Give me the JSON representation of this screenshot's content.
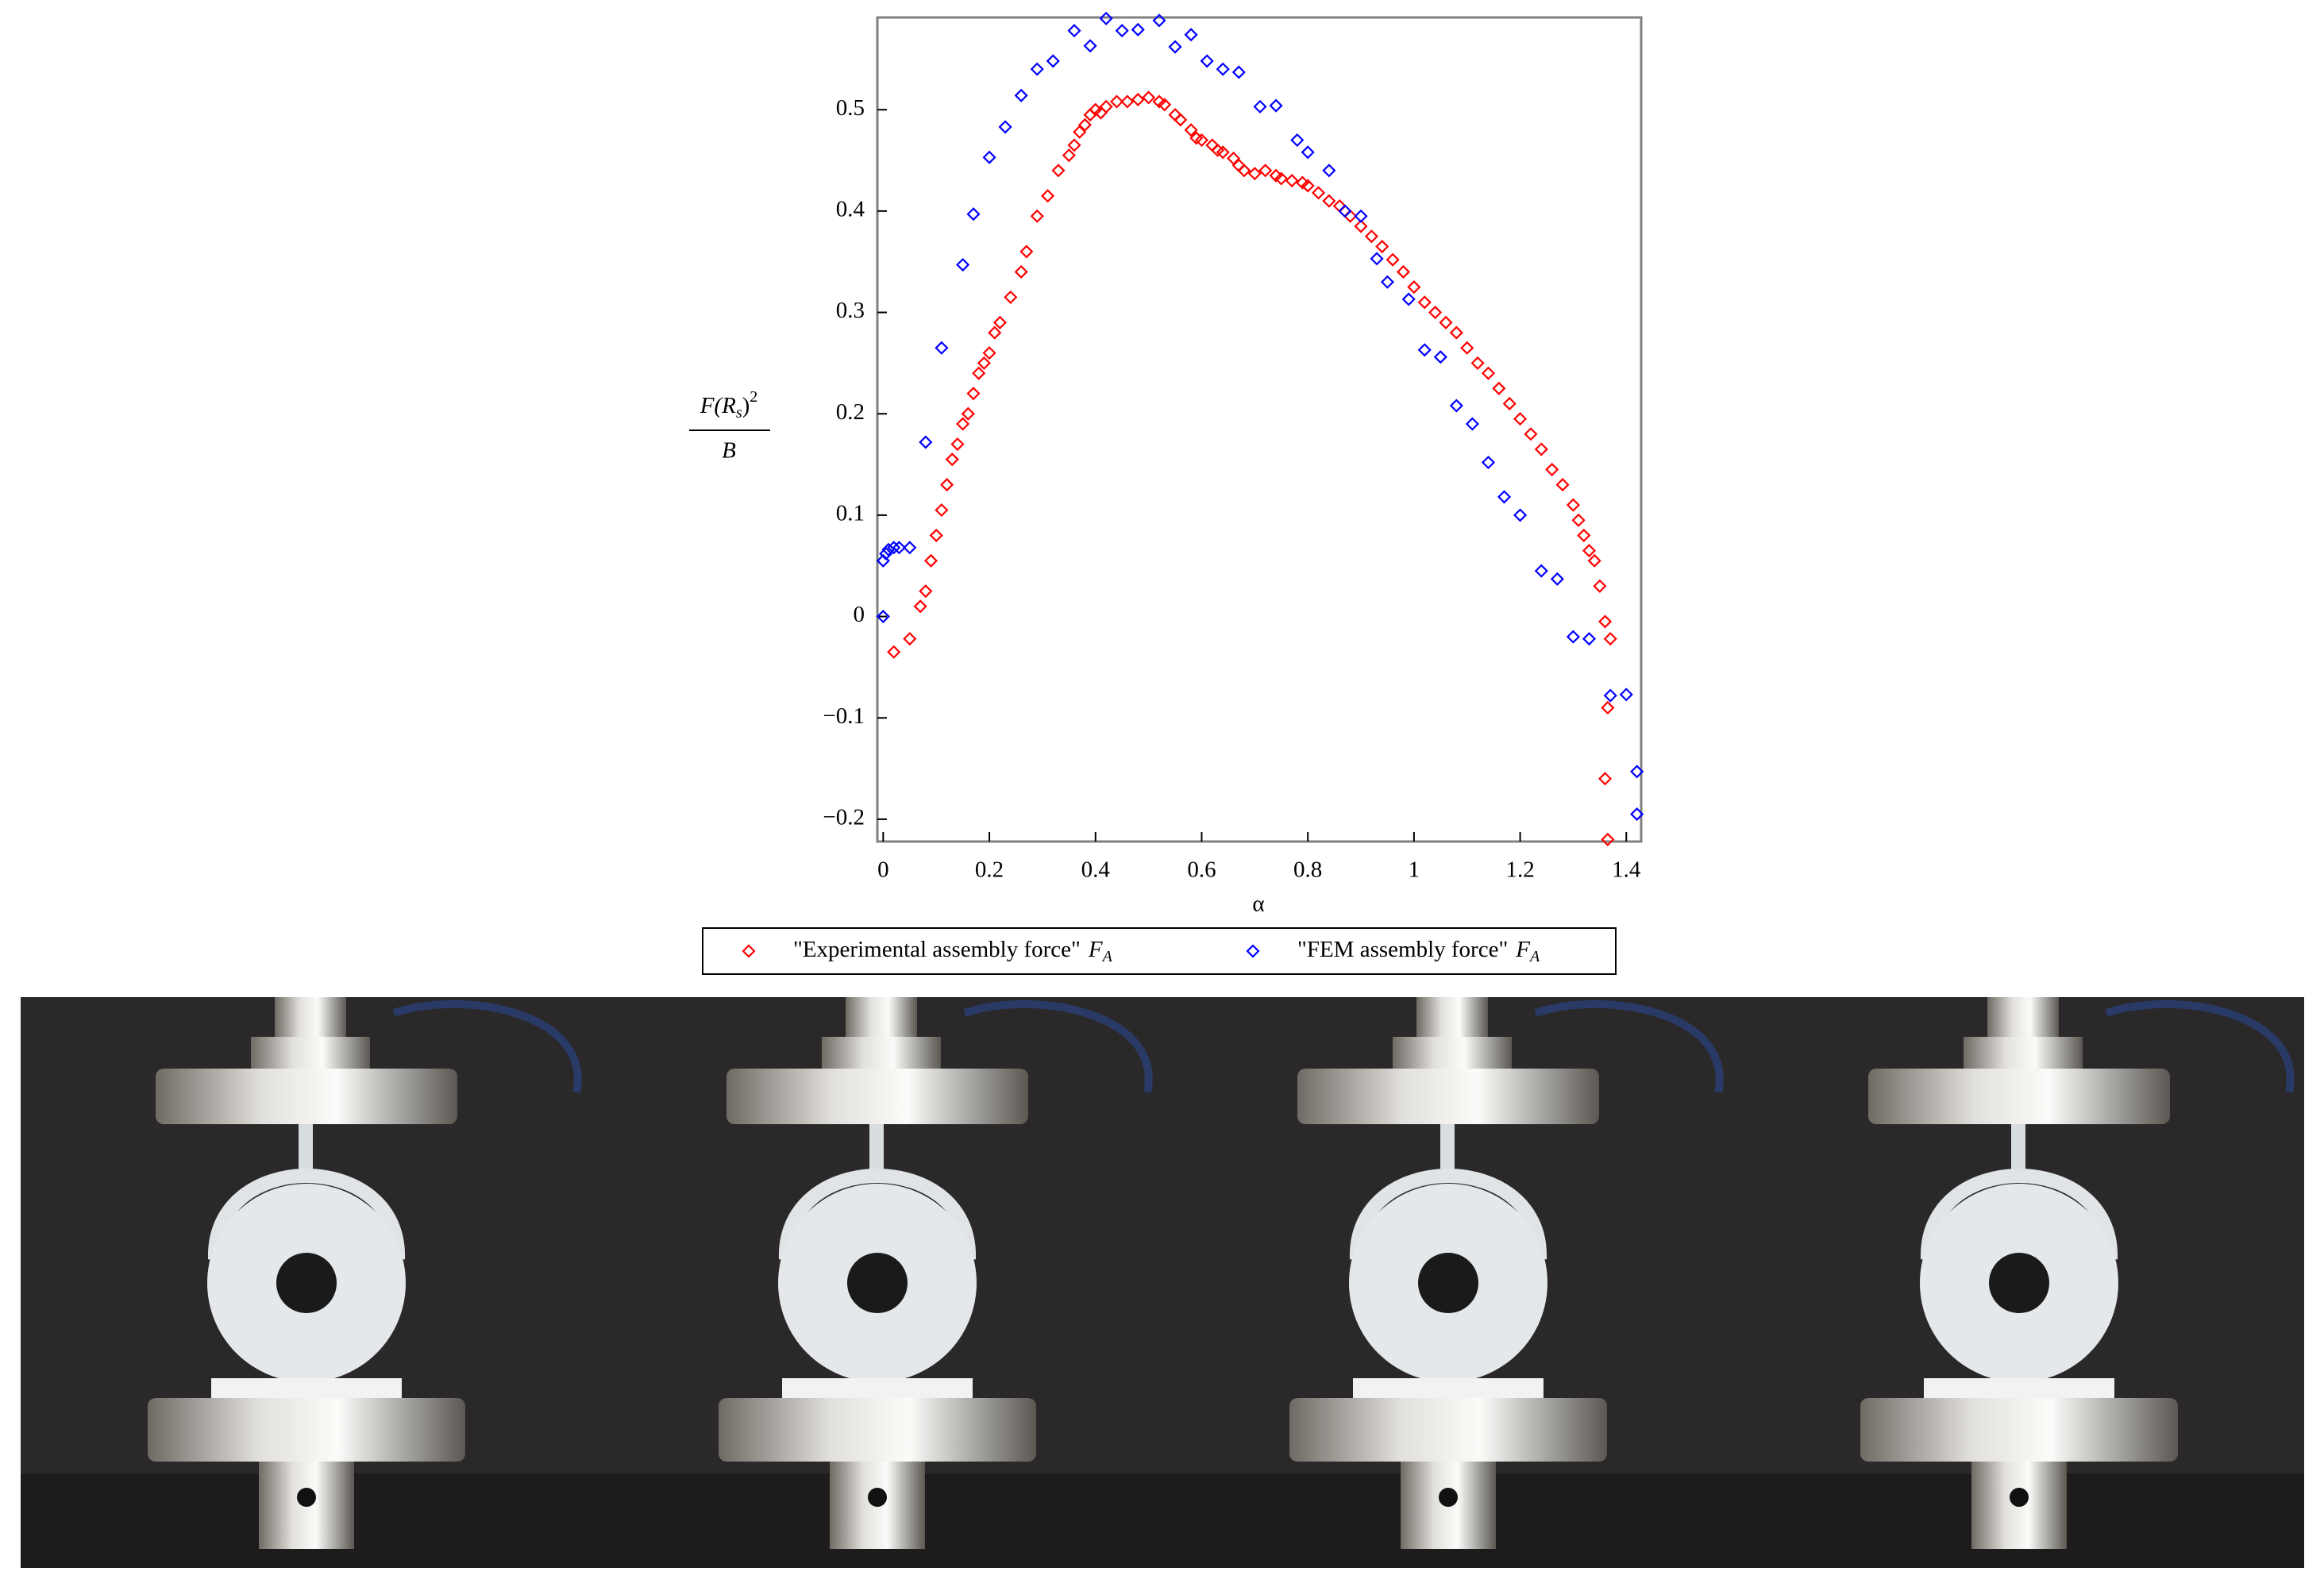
{
  "chart_data": {
    "type": "scatter",
    "x_label": "α",
    "y_label": {
      "numerator": [
        "F(R",
        "s",
        ")",
        "2"
      ],
      "denominator": "B"
    },
    "xlim": [
      -0.011,
      1.428
    ],
    "ylim": [
      -0.222,
      0.591
    ],
    "xticks": [
      0,
      0.2,
      0.4,
      0.6,
      0.8,
      1,
      1.2,
      1.4
    ],
    "yticks": [
      {
        "value": -0.2,
        "label": "−0.2"
      },
      {
        "value": -0.1,
        "label": "−0.1"
      },
      0,
      0.1,
      0.2,
      0.3,
      0.4,
      0.5
    ],
    "grid": false,
    "legend": "bottom",
    "series": [
      {
        "name": "\"Experimental assembly force\"",
        "symbol": "F",
        "symbol_sub": "A",
        "color": "#ff0000",
        "x": [
          0.02,
          0.05,
          0.07,
          0.08,
          0.09,
          0.1,
          0.11,
          0.12,
          0.13,
          0.14,
          0.15,
          0.16,
          0.17,
          0.18,
          0.19,
          0.2,
          0.21,
          0.22,
          0.24,
          0.26,
          0.27,
          0.29,
          0.31,
          0.33,
          0.35,
          0.36,
          0.37,
          0.38,
          0.39,
          0.4,
          0.41,
          0.42,
          0.44,
          0.46,
          0.48,
          0.5,
          0.52,
          0.53,
          0.55,
          0.56,
          0.58,
          0.59,
          0.6,
          0.62,
          0.63,
          0.64,
          0.66,
          0.67,
          0.68,
          0.7,
          0.72,
          0.74,
          0.75,
          0.77,
          0.79,
          0.8,
          0.82,
          0.84,
          0.86,
          0.88,
          0.9,
          0.92,
          0.94,
          0.96,
          0.98,
          1.0,
          1.02,
          1.04,
          1.06,
          1.08,
          1.1,
          1.12,
          1.14,
          1.16,
          1.18,
          1.2,
          1.22,
          1.24,
          1.26,
          1.28,
          1.3,
          1.31,
          1.32,
          1.33,
          1.34,
          1.35,
          1.36,
          1.37,
          1.365,
          1.36,
          1.365
        ],
        "values": [
          -0.035,
          -0.022,
          0.01,
          0.025,
          0.055,
          0.08,
          0.105,
          0.13,
          0.155,
          0.17,
          0.19,
          0.2,
          0.22,
          0.24,
          0.25,
          0.26,
          0.28,
          0.29,
          0.315,
          0.34,
          0.36,
          0.395,
          0.415,
          0.44,
          0.455,
          0.465,
          0.478,
          0.485,
          0.495,
          0.5,
          0.497,
          0.503,
          0.508,
          0.508,
          0.51,
          0.512,
          0.508,
          0.505,
          0.495,
          0.49,
          0.48,
          0.472,
          0.47,
          0.465,
          0.46,
          0.458,
          0.452,
          0.445,
          0.44,
          0.437,
          0.44,
          0.435,
          0.432,
          0.43,
          0.428,
          0.425,
          0.418,
          0.41,
          0.405,
          0.395,
          0.385,
          0.375,
          0.365,
          0.352,
          0.34,
          0.325,
          0.31,
          0.3,
          0.29,
          0.28,
          0.265,
          0.25,
          0.24,
          0.225,
          0.21,
          0.195,
          0.18,
          0.165,
          0.145,
          0.13,
          0.11,
          0.095,
          0.08,
          0.065,
          0.055,
          0.03,
          -0.005,
          -0.022,
          -0.09,
          -0.16,
          -0.22
        ]
      },
      {
        "name": "\"FEM assembly force\"",
        "symbol": "F",
        "symbol_sub": "A",
        "color": "#0000ff",
        "x": [
          0.0,
          0.0,
          0.005,
          0.01,
          0.02,
          0.03,
          0.05,
          0.08,
          0.11,
          0.15,
          0.17,
          0.2,
          0.23,
          0.26,
          0.29,
          0.32,
          0.36,
          0.39,
          0.42,
          0.45,
          0.48,
          0.52,
          0.55,
          0.58,
          0.61,
          0.64,
          0.67,
          0.71,
          0.74,
          0.78,
          0.8,
          0.84,
          0.87,
          0.9,
          0.93,
          0.95,
          0.99,
          1.02,
          1.05,
          1.08,
          1.11,
          1.14,
          1.17,
          1.2,
          1.24,
          1.27,
          1.3,
          1.33,
          1.37,
          1.4,
          1.42,
          1.42
        ],
        "values": [
          0.0,
          0.055,
          0.062,
          0.066,
          0.068,
          0.068,
          0.068,
          0.172,
          0.265,
          0.347,
          0.397,
          0.453,
          0.483,
          0.514,
          0.54,
          0.548,
          0.578,
          0.563,
          0.59,
          0.578,
          0.579,
          0.588,
          0.562,
          0.574,
          0.548,
          0.54,
          0.537,
          0.503,
          0.504,
          0.47,
          0.458,
          0.44,
          0.4,
          0.395,
          0.353,
          0.33,
          0.313,
          0.263,
          0.256,
          0.208,
          0.19,
          0.152,
          0.118,
          0.1,
          0.045,
          0.037,
          -0.02,
          -0.022,
          -0.078,
          -0.077,
          -0.153,
          -0.195
        ]
      }
    ]
  }
}
